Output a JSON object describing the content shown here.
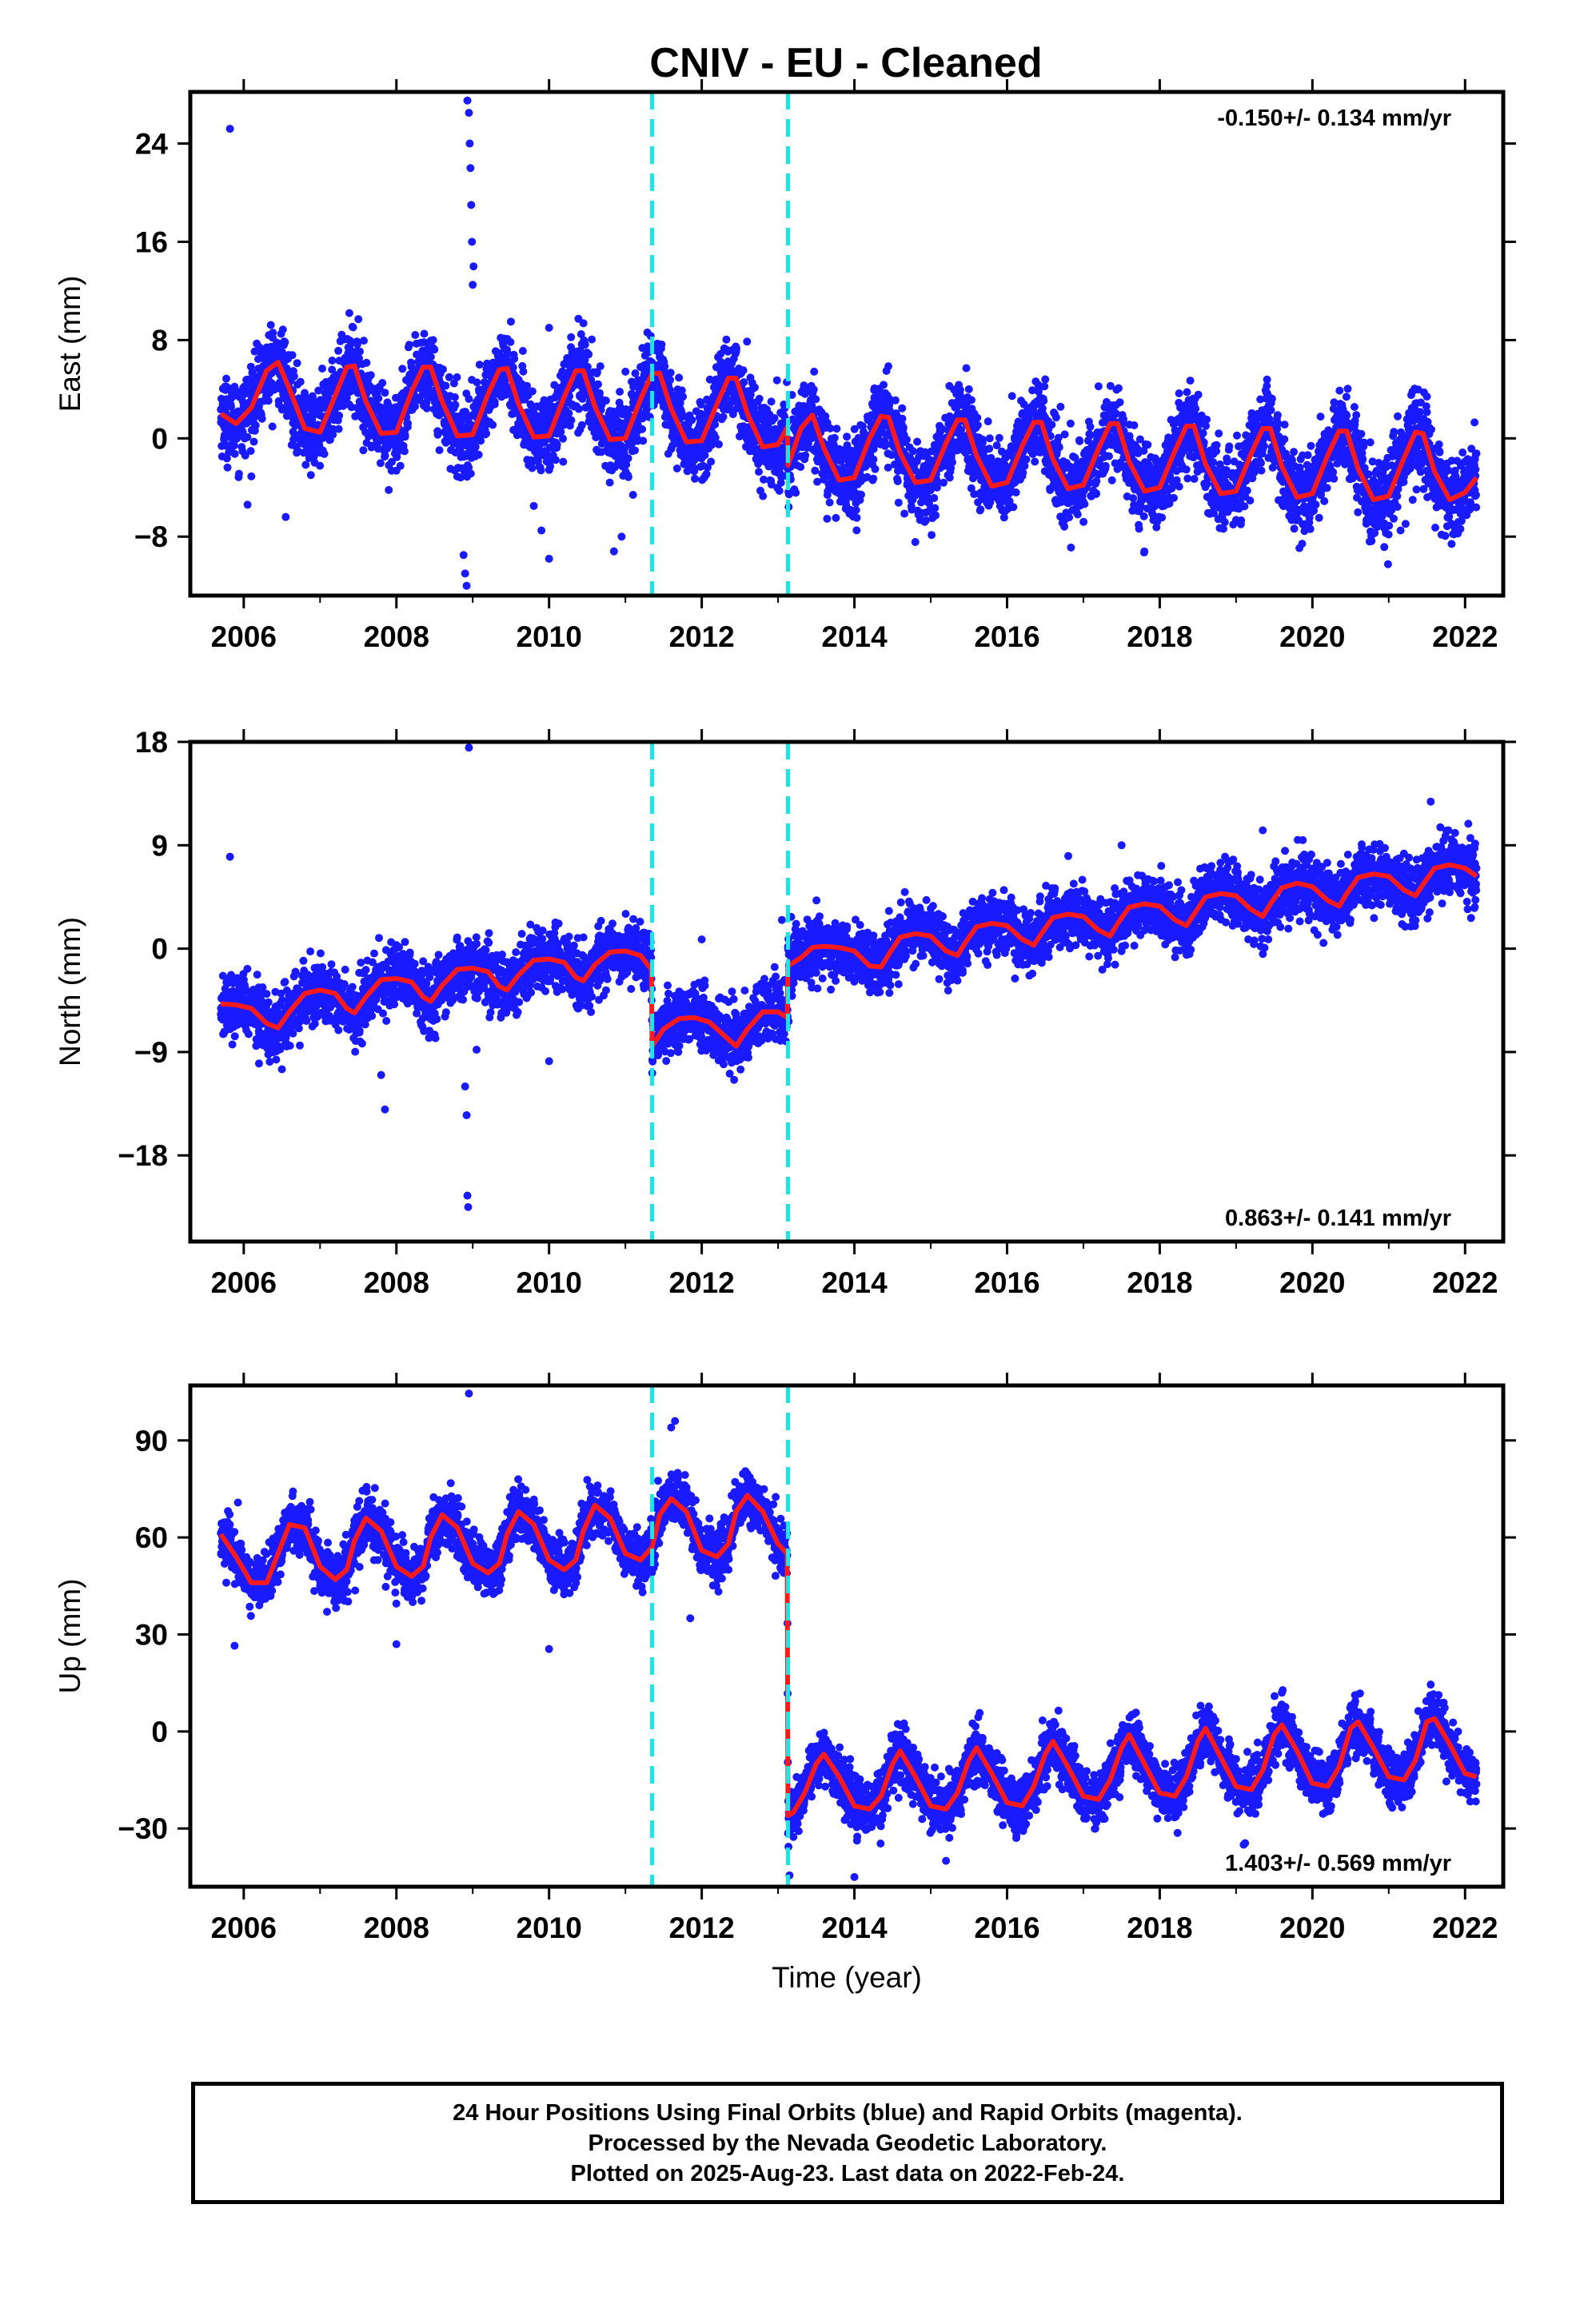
{
  "title": "CNIV  - EU - Cleaned",
  "colors": {
    "data_points": "#1a1aff",
    "model_line": "#ff1a1a",
    "offset_lines": "#1ae6e6",
    "frame": "#000000"
  },
  "footer": {
    "line1": "24 Hour Positions Using Final Orbits (blue) and Rapid Orbits (magenta).",
    "line2": "Processed by the Nevada Geodetic Laboratory.",
    "line3": "Plotted on 2025-Aug-23. Last data on 2022-Feb-24."
  },
  "chart_data": [
    {
      "type": "scatter",
      "component": "East",
      "ylabel": "East (mm)",
      "xlabel": "",
      "xlim": [
        2005.3,
        2022.5
      ],
      "ylim": [
        -12.8,
        28.2
      ],
      "xticks": [
        2006,
        2008,
        2010,
        2012,
        2014,
        2016,
        2018,
        2020,
        2022
      ],
      "yticks": [
        -8,
        0,
        8,
        16,
        24
      ],
      "ytick_labels": [
        "−8",
        "0",
        "8",
        "16",
        "24"
      ],
      "rate_text": "-0.150+/- 0.134 mm/yr",
      "rate_position": "top-right",
      "offsets": [
        2011.35,
        2013.13
      ],
      "series": [
        {
          "role": "model",
          "x": [
            2005.7,
            2005.9,
            2006.1,
            2006.3,
            2006.45,
            2006.6,
            2006.8,
            2007.0,
            2007.2,
            2007.35,
            2007.45,
            2007.6,
            2007.8,
            2008.0,
            2008.2,
            2008.35,
            2008.45,
            2008.6,
            2008.8,
            2009.0,
            2009.2,
            2009.35,
            2009.45,
            2009.6,
            2009.8,
            2010.0,
            2010.2,
            2010.35,
            2010.45,
            2010.6,
            2010.8,
            2011.0,
            2011.2,
            2011.35,
            2011.45,
            2011.6,
            2011.8,
            2012.0,
            2012.2,
            2012.35,
            2012.45,
            2012.6,
            2012.8,
            2013.0,
            2013.12,
            2013.13,
            2013.3,
            2013.45,
            2013.6,
            2013.8,
            2014.0,
            2014.2,
            2014.35,
            2014.45,
            2014.6,
            2014.8,
            2015.0,
            2015.2,
            2015.35,
            2015.45,
            2015.6,
            2015.8,
            2016.0,
            2016.2,
            2016.35,
            2016.45,
            2016.6,
            2016.8,
            2017.0,
            2017.2,
            2017.35,
            2017.45,
            2017.6,
            2017.8,
            2018.0,
            2018.2,
            2018.35,
            2018.45,
            2018.6,
            2018.8,
            2019.0,
            2019.2,
            2019.35,
            2019.45,
            2019.6,
            2019.8,
            2020.0,
            2020.2,
            2020.35,
            2020.45,
            2020.6,
            2020.8,
            2021.0,
            2021.2,
            2021.35,
            2021.45,
            2021.6,
            2021.8,
            2022.0,
            2022.15
          ],
          "y": [
            2.0,
            1.2,
            2.5,
            5.5,
            6.2,
            4.0,
            0.8,
            0.5,
            3.5,
            5.8,
            5.9,
            3.0,
            0.4,
            0.5,
            3.8,
            5.8,
            5.8,
            3.0,
            0.2,
            0.3,
            3.6,
            5.6,
            5.7,
            2.8,
            0.1,
            0.2,
            3.4,
            5.5,
            5.5,
            2.6,
            -0.1,
            0.0,
            3.2,
            5.3,
            5.3,
            2.4,
            -0.3,
            -0.2,
            2.8,
            4.9,
            4.9,
            2.0,
            -0.7,
            -0.5,
            0.9,
            -2.2,
            0.8,
            1.9,
            -0.8,
            -3.4,
            -3.2,
            0.0,
            1.8,
            1.7,
            -1.2,
            -3.6,
            -3.4,
            -0.4,
            1.5,
            1.5,
            -1.4,
            -3.9,
            -3.6,
            -0.6,
            1.3,
            1.3,
            -1.7,
            -4.1,
            -3.8,
            -0.8,
            1.2,
            1.2,
            -1.9,
            -4.3,
            -4.0,
            -1.0,
            1.0,
            1.0,
            -2.1,
            -4.5,
            -4.3,
            -1.2,
            0.8,
            0.8,
            -2.3,
            -4.8,
            -4.5,
            -1.4,
            0.6,
            0.6,
            -2.5,
            -5.0,
            -4.7,
            -1.6,
            0.5,
            0.4,
            -2.7,
            -5.0,
            -4.4,
            -3.2
          ]
        }
      ],
      "points": {
        "scatter_sd": 1.6,
        "outliers": [
          {
            "x": 2005.82,
            "y": 25.2
          },
          {
            "x": 2008.93,
            "y": 27.5
          },
          {
            "x": 2008.95,
            "y": 26.5
          },
          {
            "x": 2008.96,
            "y": 24.0
          },
          {
            "x": 2008.97,
            "y": 22.0
          },
          {
            "x": 2008.98,
            "y": 19.0
          },
          {
            "x": 2008.99,
            "y": 16.0
          },
          {
            "x": 2009.0,
            "y": 12.5
          },
          {
            "x": 2009.01,
            "y": 14.0
          },
          {
            "x": 2008.9,
            "y": -11.0
          },
          {
            "x": 2008.92,
            "y": -12.0
          },
          {
            "x": 2008.88,
            "y": -9.5
          },
          {
            "x": 2006.05,
            "y": -5.4
          },
          {
            "x": 2006.55,
            "y": -6.4
          },
          {
            "x": 2007.9,
            "y": -4.2
          },
          {
            "x": 2009.8,
            "y": -5.5
          },
          {
            "x": 2010.0,
            "y": -9.8
          },
          {
            "x": 2009.9,
            "y": -7.5
          },
          {
            "x": 2010.85,
            "y": -9.2
          },
          {
            "x": 2010.95,
            "y": -8.0
          },
          {
            "x": 2011.1,
            "y": -4.6
          },
          {
            "x": 2009.5,
            "y": 9.5
          },
          {
            "x": 2010.0,
            "y": 9.0
          },
          {
            "x": 2015.5,
            "y": 4.0
          },
          {
            "x": 2016.5,
            "y": 4.8
          },
          {
            "x": 2018.4,
            "y": 4.7
          },
          {
            "x": 2021.5,
            "y": 3.4
          }
        ]
      }
    },
    {
      "type": "scatter",
      "component": "North",
      "ylabel": "North (mm)",
      "xlabel": "",
      "xlim": [
        2005.3,
        2022.5
      ],
      "ylim": [
        -25.5,
        18.0
      ],
      "xticks": [
        2006,
        2008,
        2010,
        2012,
        2014,
        2016,
        2018,
        2020,
        2022
      ],
      "yticks": [
        -18,
        -9,
        0,
        9,
        18
      ],
      "ytick_labels": [
        "−18",
        "−9",
        "0",
        "9",
        "18"
      ],
      "rate_text": "0.863+/- 0.141 mm/yr",
      "rate_position": "bottom-right",
      "offsets": [
        2011.35,
        2013.13
      ],
      "series": [
        {
          "role": "model",
          "x": [
            2005.7,
            2005.9,
            2006.1,
            2006.3,
            2006.45,
            2006.6,
            2006.8,
            2007.0,
            2007.2,
            2007.35,
            2007.45,
            2007.6,
            2007.8,
            2008.0,
            2008.2,
            2008.35,
            2008.45,
            2008.6,
            2008.8,
            2009.0,
            2009.2,
            2009.35,
            2009.45,
            2009.6,
            2009.8,
            2010.0,
            2010.2,
            2010.35,
            2010.45,
            2010.6,
            2010.8,
            2011.0,
            2011.2,
            2011.34,
            2011.35,
            2011.5,
            2011.7,
            2011.9,
            2012.1,
            2012.3,
            2012.45,
            2012.6,
            2012.8,
            2013.0,
            2013.12,
            2013.13,
            2013.3,
            2013.45,
            2013.6,
            2013.8,
            2014.0,
            2014.2,
            2014.35,
            2014.45,
            2014.6,
            2014.8,
            2015.0,
            2015.2,
            2015.35,
            2015.45,
            2015.6,
            2015.8,
            2016.0,
            2016.2,
            2016.35,
            2016.45,
            2016.6,
            2016.8,
            2017.0,
            2017.2,
            2017.35,
            2017.45,
            2017.6,
            2017.8,
            2018.0,
            2018.2,
            2018.35,
            2018.45,
            2018.6,
            2018.8,
            2019.0,
            2019.2,
            2019.35,
            2019.45,
            2019.6,
            2019.8,
            2020.0,
            2020.2,
            2020.35,
            2020.45,
            2020.6,
            2020.8,
            2021.0,
            2021.2,
            2021.35,
            2021.45,
            2021.6,
            2021.8,
            2022.0,
            2022.15
          ],
          "y": [
            -4.8,
            -4.9,
            -5.2,
            -6.5,
            -6.9,
            -5.5,
            -3.9,
            -3.6,
            -3.9,
            -5.2,
            -5.6,
            -4.2,
            -2.7,
            -2.6,
            -2.9,
            -4.2,
            -4.6,
            -3.2,
            -1.8,
            -1.7,
            -2.0,
            -3.3,
            -3.6,
            -2.3,
            -1.0,
            -0.9,
            -1.2,
            -2.5,
            -2.8,
            -1.4,
            -0.3,
            -0.2,
            -0.6,
            -1.8,
            -8.5,
            -7.0,
            -6.1,
            -6.0,
            -6.4,
            -7.6,
            -8.5,
            -7.0,
            -5.5,
            -5.5,
            -6.0,
            -1.5,
            -0.8,
            0.1,
            0.2,
            0.1,
            -0.2,
            -1.5,
            -1.6,
            -0.5,
            1.0,
            1.3,
            1.1,
            -0.2,
            -0.6,
            0.5,
            1.9,
            2.2,
            2.0,
            0.8,
            0.3,
            1.3,
            2.7,
            3.0,
            2.8,
            1.6,
            1.1,
            2.2,
            3.6,
            3.9,
            3.7,
            2.5,
            2.0,
            3.0,
            4.5,
            4.8,
            4.6,
            3.4,
            2.8,
            3.9,
            5.3,
            5.7,
            5.4,
            4.2,
            3.7,
            4.8,
            6.2,
            6.5,
            6.3,
            5.1,
            4.6,
            5.6,
            7.0,
            7.3,
            7.0,
            6.3
          ]
        }
      ],
      "points": {
        "scatter_sd": 1.3,
        "outliers": [
          {
            "x": 2005.82,
            "y": 8.0
          },
          {
            "x": 2008.95,
            "y": 17.5
          },
          {
            "x": 2008.93,
            "y": -21.5
          },
          {
            "x": 2008.94,
            "y": -22.5
          },
          {
            "x": 2008.92,
            "y": -14.5
          },
          {
            "x": 2008.9,
            "y": -12.0
          },
          {
            "x": 2007.85,
            "y": -14.0
          },
          {
            "x": 2007.8,
            "y": -11.0
          },
          {
            "x": 2006.2,
            "y": -10.0
          },
          {
            "x": 2006.5,
            "y": -10.5
          },
          {
            "x": 2009.05,
            "y": -8.8
          },
          {
            "x": 2010.0,
            "y": -9.8
          },
          {
            "x": 2021.55,
            "y": 12.8
          },
          {
            "x": 2013.05,
            "y": 2.5
          },
          {
            "x": 2012.0,
            "y": 0.8
          },
          {
            "x": 2019.35,
            "y": 10.3
          },
          {
            "x": 2017.5,
            "y": 9.0
          }
        ]
      }
    },
    {
      "type": "scatter",
      "component": "Up",
      "ylabel": "Up (mm)",
      "xlabel": "Time (year)",
      "xlim": [
        2005.3,
        2022.5
      ],
      "ylim": [
        -48,
        107
      ],
      "xticks": [
        2006,
        2008,
        2010,
        2012,
        2014,
        2016,
        2018,
        2020,
        2022
      ],
      "yticks": [
        -30,
        0,
        30,
        60,
        90
      ],
      "ytick_labels": [
        "−30",
        "0",
        "30",
        "60",
        "90"
      ],
      "rate_text": "1.403+/- 0.569 mm/yr",
      "rate_position": "bottom-right",
      "offsets": [
        2011.35,
        2013.13
      ],
      "series": [
        {
          "role": "model",
          "x": [
            2005.7,
            2005.9,
            2006.1,
            2006.3,
            2006.45,
            2006.6,
            2006.8,
            2007.0,
            2007.2,
            2007.35,
            2007.45,
            2007.6,
            2007.8,
            2008.0,
            2008.2,
            2008.35,
            2008.45,
            2008.6,
            2008.8,
            2009.0,
            2009.2,
            2009.35,
            2009.45,
            2009.6,
            2009.8,
            2010.0,
            2010.2,
            2010.35,
            2010.45,
            2010.6,
            2010.8,
            2011.0,
            2011.2,
            2011.35,
            2011.45,
            2011.6,
            2011.8,
            2012.0,
            2012.2,
            2012.35,
            2012.45,
            2012.6,
            2012.8,
            2013.0,
            2013.12,
            2013.13,
            2013.2,
            2013.35,
            2013.5,
            2013.6,
            2013.8,
            2014.0,
            2014.2,
            2014.35,
            2014.5,
            2014.6,
            2014.8,
            2015.0,
            2015.2,
            2015.35,
            2015.5,
            2015.6,
            2015.8,
            2016.0,
            2016.2,
            2016.35,
            2016.5,
            2016.6,
            2016.8,
            2017.0,
            2017.2,
            2017.35,
            2017.5,
            2017.6,
            2017.8,
            2018.0,
            2018.2,
            2018.35,
            2018.5,
            2018.6,
            2018.8,
            2019.0,
            2019.2,
            2019.35,
            2019.5,
            2019.6,
            2019.8,
            2020.0,
            2020.2,
            2020.35,
            2020.5,
            2020.6,
            2020.8,
            2021.0,
            2021.2,
            2021.35,
            2021.5,
            2021.6,
            2021.8,
            2022.0,
            2022.15
          ],
          "y": [
            61,
            54,
            46,
            46,
            55,
            64,
            63,
            51,
            47,
            50,
            59,
            66,
            62,
            51,
            48,
            51,
            60,
            67,
            63,
            52,
            49,
            52,
            61,
            68,
            64,
            53,
            50,
            53,
            62,
            70,
            66,
            55,
            53,
            57,
            67,
            72,
            68,
            56,
            54,
            58,
            68,
            73,
            68,
            58,
            55,
            -26,
            -25,
            -19,
            -10,
            -7,
            -14,
            -23,
            -24,
            -20,
            -10,
            -6,
            -14,
            -23,
            -24,
            -19,
            -9,
            -5,
            -13,
            -22,
            -23,
            -17,
            -7,
            -3,
            -11,
            -20,
            -21,
            -15,
            -5,
            -1,
            -10,
            -19,
            -20,
            -14,
            -3,
            1,
            -8,
            -17,
            -18,
            -12,
            -1,
            2,
            -6,
            -16,
            -17,
            -11,
            1,
            3,
            -5,
            -14,
            -15,
            -9,
            3,
            4,
            -4,
            -13,
            -14
          ]
        }
      ],
      "points": {
        "scatter_sd": 4.0,
        "outliers": [
          {
            "x": 2008.95,
            "y": 104.5
          },
          {
            "x": 2011.65,
            "y": 96.0
          },
          {
            "x": 2011.6,
            "y": 94.0
          },
          {
            "x": 2005.88,
            "y": 26.5
          },
          {
            "x": 2008.0,
            "y": 27.0
          },
          {
            "x": 2010.0,
            "y": 25.5
          },
          {
            "x": 2013.15,
            "y": -44.5
          },
          {
            "x": 2014.0,
            "y": -45.0
          },
          {
            "x": 2015.2,
            "y": -40.0
          },
          {
            "x": 2011.85,
            "y": 35.0
          },
          {
            "x": 2019.1,
            "y": -35.0
          },
          {
            "x": 2021.55,
            "y": 14.5
          },
          {
            "x": 2019.6,
            "y": 12.0
          }
        ]
      }
    }
  ]
}
